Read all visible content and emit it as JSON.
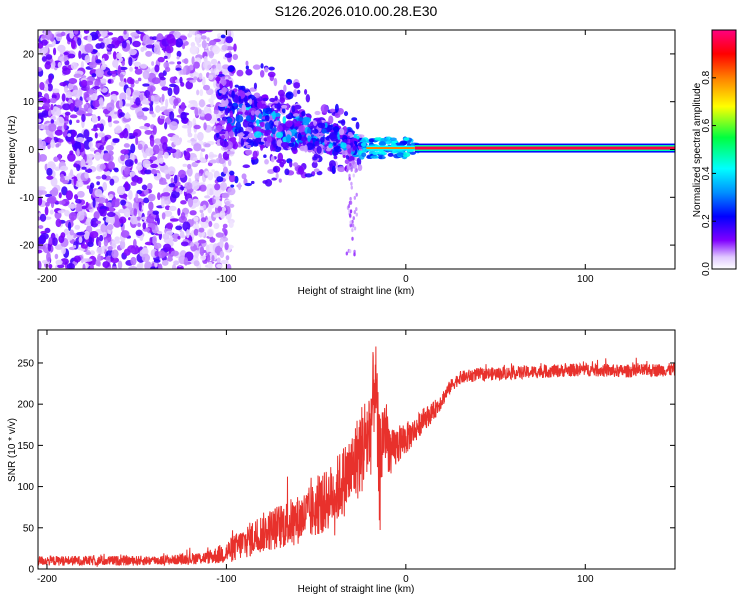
{
  "chart_data": [
    {
      "type": "heatmap",
      "title": "S126.2026.010.00.28.E30",
      "xlabel": "Height of straight line (km)",
      "ylabel": "Frequency (Hz)",
      "xlim": [
        -205,
        150
      ],
      "ylim": [
        -25,
        25
      ],
      "x_ticks": [
        -200,
        -100,
        0,
        100
      ],
      "x_tick_labels": [
        "-200",
        "-100",
        "0",
        "100"
      ],
      "y_ticks": [
        -20,
        -10,
        0,
        10,
        20
      ],
      "y_tick_labels": [
        "-20",
        "-10",
        "0",
        "10",
        "20"
      ],
      "colorbar": {
        "label": "Normalized spectral amplitude",
        "range": [
          0,
          1
        ],
        "ticks": [
          0.0,
          0.2,
          0.4,
          0.6,
          0.8
        ],
        "tick_labels": [
          "0.0",
          "0.2",
          "0.4",
          "0.6",
          "0.8"
        ]
      },
      "features": {
        "noise_region_km": [
          -205,
          -105
        ],
        "transition_region_km": [
          -105,
          -25
        ],
        "stable_line_start_km": 5,
        "stable_line_frequency_hz": 0.3,
        "stable_line_amplitude": 0.95
      }
    },
    {
      "type": "line",
      "title": "",
      "xlabel": "Height of straight line (km)",
      "ylabel": "SNR (10 * v/v)",
      "xlim": [
        -205,
        150
      ],
      "ylim": [
        0,
        290
      ],
      "x_ticks": [
        -200,
        -100,
        0,
        100
      ],
      "x_tick_labels": [
        "-200",
        "-100",
        "0",
        "100"
      ],
      "y_ticks": [
        0,
        50,
        100,
        150,
        200,
        250
      ],
      "y_tick_labels": [
        "0",
        "50",
        "100",
        "150",
        "200",
        "250"
      ],
      "series": [
        {
          "name": "SNR",
          "color": "#e8312c",
          "x": [
            -205,
            -190,
            -170,
            -150,
            -130,
            -110,
            -100,
            -90,
            -80,
            -70,
            -60,
            -50,
            -40,
            -30,
            -25,
            -20,
            -17,
            -15,
            -12,
            -8,
            -5,
            0,
            5,
            10,
            15,
            20,
            25,
            30,
            40,
            60,
            80,
            100,
            120,
            150
          ],
          "y": [
            10,
            10,
            10,
            10,
            11,
            14,
            20,
            32,
            44,
            52,
            60,
            72,
            92,
            120,
            145,
            165,
            235,
            120,
            175,
            138,
            150,
            158,
            168,
            182,
            190,
            205,
            222,
            232,
            236,
            238,
            240,
            242,
            240,
            242
          ],
          "noise_amplitude": [
            6,
            6,
            6,
            6,
            6,
            8,
            14,
            20,
            24,
            28,
            30,
            34,
            40,
            48,
            55,
            65,
            55,
            70,
            45,
            30,
            25,
            20,
            16,
            14,
            12,
            10,
            8,
            8,
            8,
            8,
            8,
            8,
            8,
            8
          ]
        }
      ]
    }
  ]
}
